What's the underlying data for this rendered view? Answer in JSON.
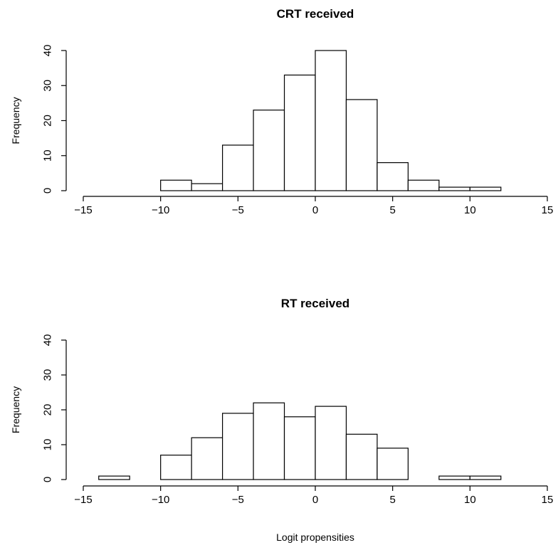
{
  "chart_data": [
    {
      "type": "bar",
      "title": "CRT received",
      "ylabel": "Frequency",
      "xlabel": "",
      "xlim": [
        -15,
        15
      ],
      "ylim": [
        0,
        40
      ],
      "xticks": [
        -15,
        -10,
        -5,
        0,
        5,
        10,
        15
      ],
      "yticks": [
        0,
        10,
        20,
        30,
        40
      ],
      "bin_width": 2,
      "bins": [
        {
          "start": -10,
          "end": -8,
          "count": 3
        },
        {
          "start": -8,
          "end": -6,
          "count": 2
        },
        {
          "start": -6,
          "end": -4,
          "count": 13
        },
        {
          "start": -4,
          "end": -2,
          "count": 23
        },
        {
          "start": -2,
          "end": 0,
          "count": 33
        },
        {
          "start": 0,
          "end": 2,
          "count": 40
        },
        {
          "start": 2,
          "end": 4,
          "count": 26
        },
        {
          "start": 4,
          "end": 6,
          "count": 8
        },
        {
          "start": 6,
          "end": 8,
          "count": 3
        },
        {
          "start": 8,
          "end": 10,
          "count": 1
        },
        {
          "start": 10,
          "end": 12,
          "count": 1
        }
      ]
    },
    {
      "type": "bar",
      "title": "RT received",
      "ylabel": "Frequency",
      "xlabel": "Logit propensities",
      "xlim": [
        -15,
        15
      ],
      "ylim": [
        0,
        40
      ],
      "xticks": [
        -15,
        -10,
        -5,
        0,
        5,
        10,
        15
      ],
      "yticks": [
        0,
        10,
        20,
        30,
        40
      ],
      "bin_width": 2,
      "bins": [
        {
          "start": -14,
          "end": -12,
          "count": 1
        },
        {
          "start": -12,
          "end": -10,
          "count": 0
        },
        {
          "start": -10,
          "end": -8,
          "count": 7
        },
        {
          "start": -8,
          "end": -6,
          "count": 12
        },
        {
          "start": -6,
          "end": -4,
          "count": 19
        },
        {
          "start": -4,
          "end": -2,
          "count": 22
        },
        {
          "start": -2,
          "end": 0,
          "count": 18
        },
        {
          "start": 0,
          "end": 2,
          "count": 21
        },
        {
          "start": 2,
          "end": 4,
          "count": 13
        },
        {
          "start": 4,
          "end": 6,
          "count": 9
        },
        {
          "start": 6,
          "end": 8,
          "count": 0
        },
        {
          "start": 8,
          "end": 10,
          "count": 1
        },
        {
          "start": 10,
          "end": 12,
          "count": 1
        }
      ]
    }
  ]
}
